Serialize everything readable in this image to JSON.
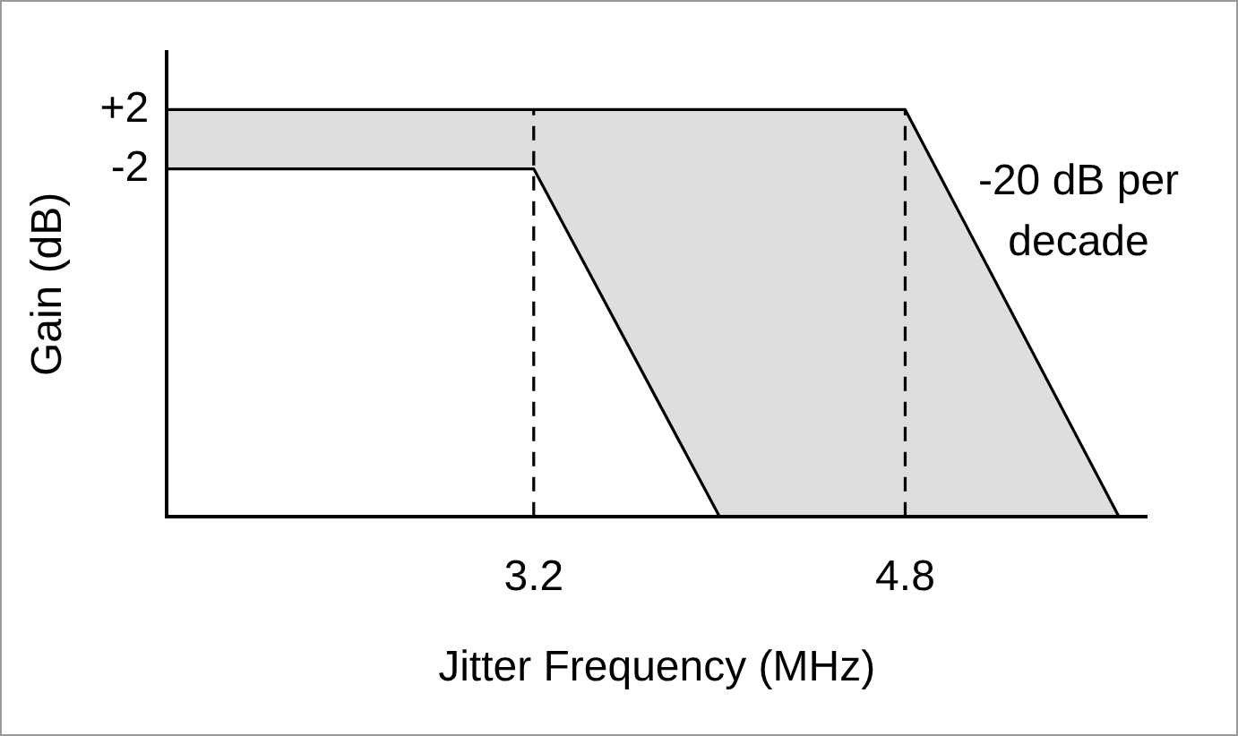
{
  "chart_data": {
    "type": "line",
    "xlabel": "Jitter Frequency (MHz)",
    "ylabel": "Gain (dB)",
    "series": [
      {
        "type": "line",
        "color": "#000000",
        "x": [
          1.62,
          3.2,
          4.0,
          4.8,
          5.72
        ],
        "values": [
          2,
          2,
          2,
          2,
          -25.5
        ],
        "lower": [
          -2,
          -2,
          -25.5,
          -25.5,
          -25.5
        ],
        "upper": [
          2,
          2,
          2,
          2,
          -25.5
        ]
      },
      {
        "type": "line",
        "color": "#000000",
        "x": [
          1.62,
          3.2,
          4.0
        ],
        "values": [
          -2,
          -2,
          -25.5
        ]
      }
    ],
    "xlim": [
      1.62,
      5.84
    ],
    "xticks": [
      3.2,
      4.8
    ],
    "ylim": [
      -25.5,
      5.9
    ],
    "yticks": [
      {
        "value": 2,
        "label": "+2"
      },
      -2
    ],
    "ref_lines": [
      {
        "axis": "x",
        "value": 3.2,
        "line_style": "dashed"
      },
      {
        "axis": "x",
        "value": 4.8,
        "line_style": "dashed"
      }
    ],
    "annotations": [
      "-20 dB per decade"
    ],
    "grid": false,
    "legend": false,
    "marker": "none",
    "line_style": "solid"
  }
}
